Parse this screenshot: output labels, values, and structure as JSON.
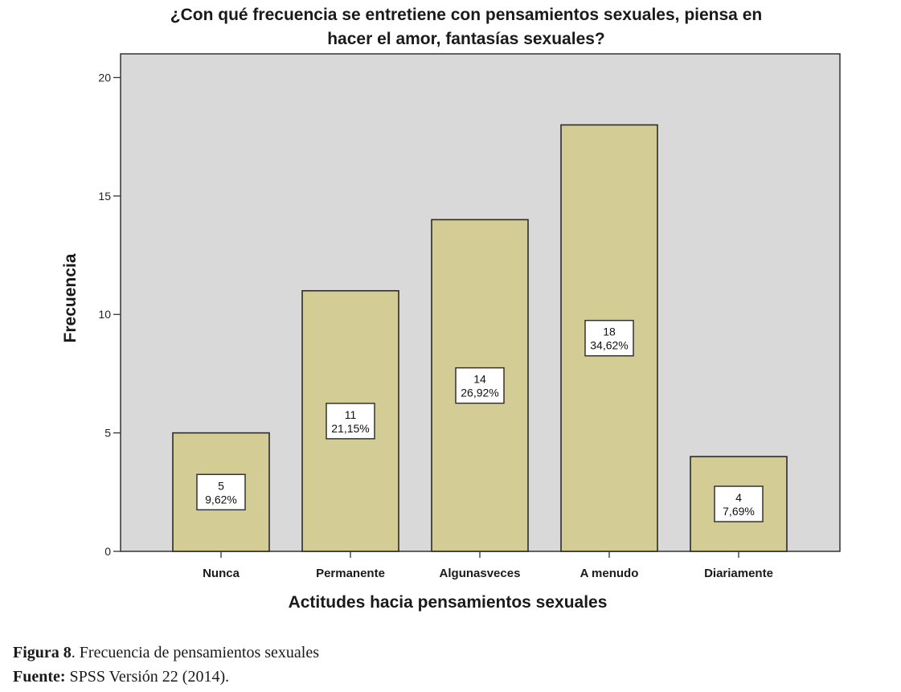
{
  "chart_data": {
    "type": "bar",
    "title_lines": [
      "¿Con qué frecuencia se entretiene con pensamientos sexuales, piensa en",
      "hacer el amor, fantasías sexuales?"
    ],
    "xlabel": "Actitudes hacia pensamientos sexuales",
    "ylabel": "Frecuencia",
    "categories": [
      "Nunca",
      "Permanente",
      "Algunasveces",
      "A menudo",
      "Diariamente"
    ],
    "values": [
      5,
      11,
      14,
      18,
      4
    ],
    "data_labels": [
      [
        "5",
        "9,62%"
      ],
      [
        "11",
        "21,15%"
      ],
      [
        "14",
        "26,92%"
      ],
      [
        "18",
        "34,62%"
      ],
      [
        "4",
        "7,69%"
      ]
    ],
    "ylim": [
      0,
      21
    ],
    "yticks": [
      0,
      5,
      10,
      15,
      20
    ],
    "grid": false,
    "colors": {
      "plot_background": "#d9d9d9",
      "bar_fill": "#d3cd95",
      "bar_stroke": "#2b2b2b",
      "label_box_fill": "#ffffff"
    }
  },
  "caption": {
    "figure_prefix": "Figura 8",
    "figure_text": ". Frecuencia de pensamientos sexuales",
    "source_prefix": "Fuente:",
    "source_text": " SPSS Versión 22 (2014)."
  }
}
